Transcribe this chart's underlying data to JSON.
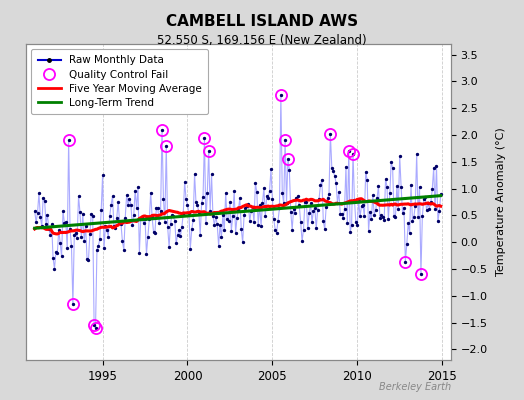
{
  "title": "CAMBELL ISLAND AWS",
  "subtitle": "52.550 S, 169.156 E (New Zealand)",
  "ylabel": "Temperature Anomaly (°C)",
  "watermark": "Berkeley Earth",
  "xlim": [
    1990.5,
    2015.5
  ],
  "ylim": [
    -2.2,
    3.7
  ],
  "yticks": [
    -2,
    -1.5,
    -1,
    -0.5,
    0,
    0.5,
    1,
    1.5,
    2,
    2.5,
    3,
    3.5
  ],
  "xticks": [
    1995,
    2000,
    2005,
    2010,
    2015
  ],
  "bg_color": "#d9d9d9",
  "plot_bg_color": "#ffffff",
  "raw_line_color": "#aaaaff",
  "raw_dot_color": "#000066",
  "ma_color": "red",
  "trend_color": "green",
  "qc_color": "#ff00ff",
  "legend_line_color": "#0000cc",
  "seed": 42
}
